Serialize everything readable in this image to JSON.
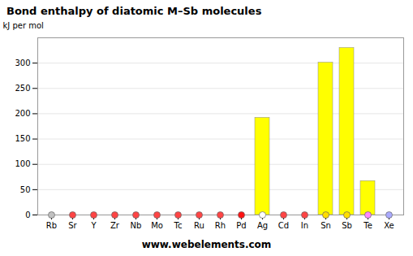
{
  "chart_data": {
    "type": "bar",
    "title": "Bond enthalpy of diatomic M–Sb molecules",
    "y_label": "kJ per mol",
    "annotations": [
      "www.webelements.com"
    ],
    "categories": [
      "Rb",
      "Sr",
      "Y",
      "Zr",
      "Nb",
      "Mo",
      "Tc",
      "Ru",
      "Rh",
      "Pd",
      "Ag",
      "Cd",
      "In",
      "Sn",
      "Sb",
      "Te",
      "Xe"
    ],
    "values": [
      0,
      0,
      0,
      0,
      0,
      0,
      0,
      0,
      0,
      0,
      192,
      0,
      0,
      301,
      330,
      67,
      0
    ],
    "color": "#ffff00",
    "colors": [
      "#c0c0c0",
      "#ff4444",
      "#ff4444",
      "#ff4444",
      "#ff4444",
      "#ff4444",
      "#ff4444",
      "#ff4444",
      "#ff4444",
      "#ff1111",
      "#ffffff",
      "#ff4444",
      "#ff4444",
      "#ffdd00",
      "#ffdd00",
      "#ff88ff",
      "#aaaaff"
    ],
    "ylim": [
      0,
      350
    ],
    "yticks": [
      0,
      50,
      100,
      150,
      200,
      250,
      300
    ],
    "grid": true
  }
}
